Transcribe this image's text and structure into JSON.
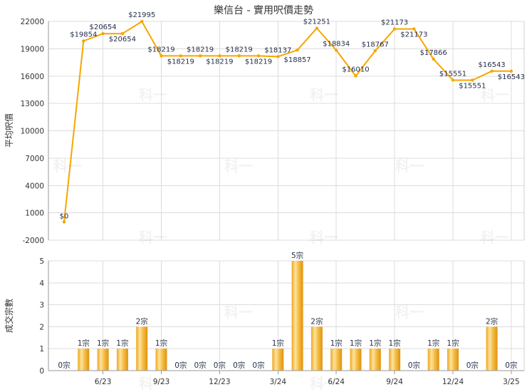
{
  "chart_data": [
    {
      "type": "line",
      "title": "樂信台 - 實用呎價走勢",
      "ylabel": "平均呎價",
      "x": [
        "4/23",
        "5/23",
        "6/23",
        "7/23",
        "8/23",
        "9/23",
        "10/23",
        "11/23",
        "12/23",
        "1/24",
        "2/24",
        "3/24",
        "4/24",
        "5/24",
        "6/24",
        "7/24",
        "8/24",
        "9/24",
        "10/24",
        "11/24",
        "12/24",
        "1/25",
        "2/25",
        "3/25"
      ],
      "values": [
        0,
        19854,
        20654,
        20654,
        21995,
        18219,
        18219,
        18219,
        18219,
        18219,
        18219,
        18137,
        18857,
        21251,
        18834,
        16010,
        18767,
        21173,
        21173,
        17866,
        15551,
        15551,
        16543,
        16543
      ],
      "data_labels": [
        "$0",
        "$19854",
        "$20654",
        "$20654",
        "$21995",
        "$18219",
        "$18219",
        "$18219",
        "$18219",
        "$18219",
        "$18219",
        "$18137",
        "$18857",
        "$21251",
        "$18834",
        "$16010",
        "$18767",
        "$21173",
        "$21173",
        "$17866",
        "$15551",
        "$15551",
        "$16543",
        "$16543"
      ],
      "yticks": [
        22000,
        19000,
        16000,
        13000,
        10000,
        7000,
        4000,
        1000,
        -2000
      ],
      "ylim": [
        -2000,
        22000
      ],
      "grid": true,
      "line_color": "#F6A600"
    },
    {
      "type": "bar",
      "ylabel": "成交宗數",
      "x": [
        "4/23",
        "5/23",
        "6/23",
        "7/23",
        "8/23",
        "9/23",
        "10/23",
        "11/23",
        "12/23",
        "1/24",
        "2/24",
        "3/24",
        "4/24",
        "5/24",
        "6/24",
        "7/24",
        "8/24",
        "9/24",
        "10/24",
        "11/24",
        "12/24",
        "1/25",
        "2/25",
        "3/25"
      ],
      "xticks": [
        "6/23",
        "9/23",
        "12/23",
        "3/24",
        "6/24",
        "9/24",
        "12/24",
        "3/25"
      ],
      "values": [
        0,
        1,
        1,
        1,
        2,
        1,
        0,
        0,
        0,
        0,
        0,
        1,
        5,
        2,
        1,
        1,
        1,
        1,
        0,
        1,
        1,
        0,
        2,
        0
      ],
      "data_labels": [
        "0宗",
        "1宗",
        "1宗",
        "1宗",
        "2宗",
        "1宗",
        "0宗",
        "0宗",
        "0宗",
        "0宗",
        "0宗",
        "1宗",
        "5宗",
        "2宗",
        "1宗",
        "1宗",
        "1宗",
        "1宗",
        "0宗",
        "1宗",
        "1宗",
        "0宗",
        "2宗",
        "0宗"
      ],
      "yticks": [
        5,
        4,
        3,
        2,
        1,
        0
      ],
      "ylim": [
        0,
        5
      ],
      "grid": true,
      "bar_color": "#EFA61E"
    }
  ],
  "watermark": "科一"
}
